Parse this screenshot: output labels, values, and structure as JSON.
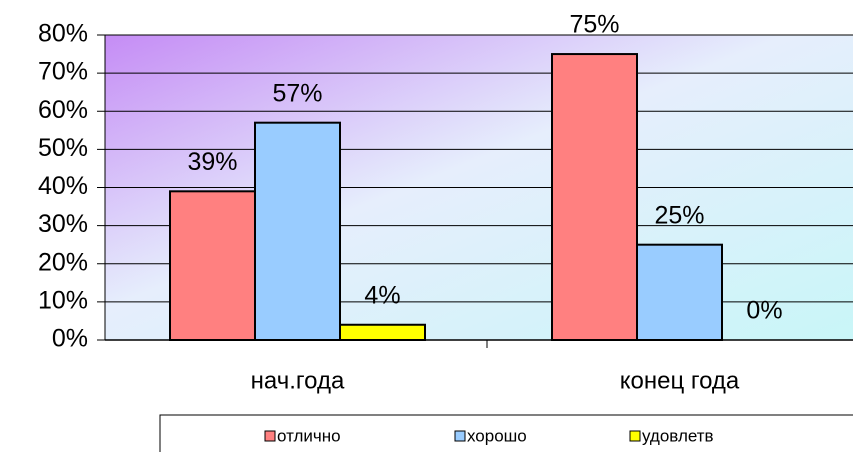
{
  "chart_data": {
    "type": "bar",
    "categories": [
      "нач.года",
      "конец года"
    ],
    "series": [
      {
        "name": "отлично",
        "color": "#ff8080",
        "values": [
          39,
          75
        ],
        "value_labels": [
          "39%",
          "75%"
        ]
      },
      {
        "name": "хорошо",
        "color": "#99ccff",
        "values": [
          57,
          25
        ],
        "value_labels": [
          "57%",
          "25%"
        ]
      },
      {
        "name": "удовлетв",
        "color": "#ffff00",
        "values": [
          4,
          0
        ],
        "value_labels": [
          "4%",
          "0%"
        ]
      }
    ],
    "ylim": [
      0,
      80
    ],
    "yticks": [
      {
        "value": 0,
        "label": "0%"
      },
      {
        "value": 10,
        "label": "10%"
      },
      {
        "value": 20,
        "label": "20%"
      },
      {
        "value": 30,
        "label": "30%"
      },
      {
        "value": 40,
        "label": "40%"
      },
      {
        "value": 50,
        "label": "50%"
      },
      {
        "value": 60,
        "label": "60%"
      },
      {
        "value": 70,
        "label": "70%"
      },
      {
        "value": 80,
        "label": "80%"
      }
    ],
    "grid": true,
    "legend": "bottom"
  }
}
